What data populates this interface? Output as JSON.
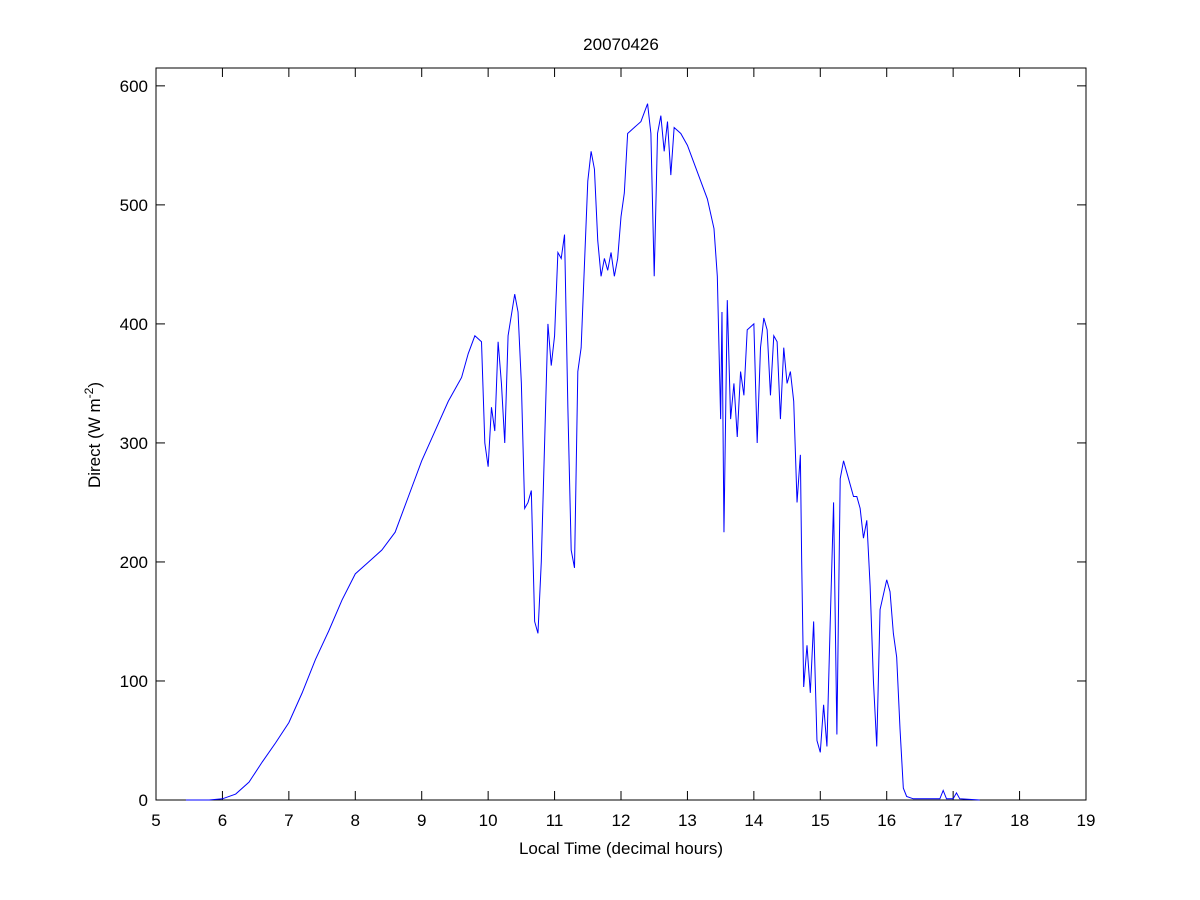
{
  "chart_data": {
    "type": "line",
    "title": "20070426",
    "xlabel": "Local Time (decimal hours)",
    "ylabel": {
      "text": "Direct (W m",
      "sup": "-2",
      "end": ")"
    },
    "xlim": [
      5,
      19
    ],
    "xticks": [
      5,
      6,
      7,
      8,
      9,
      10,
      11,
      12,
      13,
      14,
      15,
      16,
      17,
      18,
      19
    ],
    "ylim": [
      0,
      615
    ],
    "yticks": [
      0,
      100,
      200,
      300,
      400,
      500,
      600
    ],
    "series": [
      {
        "color": "#0000ff",
        "x": [
          5.45,
          5.8,
          6.0,
          6.2,
          6.4,
          6.6,
          6.8,
          7.0,
          7.2,
          7.4,
          7.6,
          7.8,
          8.0,
          8.2,
          8.4,
          8.6,
          8.8,
          9.0,
          9.2,
          9.4,
          9.6,
          9.7,
          9.8,
          9.9,
          9.95,
          10.0,
          10.05,
          10.1,
          10.15,
          10.2,
          10.25,
          10.3,
          10.4,
          10.45,
          10.5,
          10.55,
          10.6,
          10.65,
          10.7,
          10.75,
          10.8,
          10.85,
          10.9,
          10.95,
          11.0,
          11.05,
          11.1,
          11.15,
          11.2,
          11.25,
          11.3,
          11.35,
          11.4,
          11.45,
          11.5,
          11.55,
          11.6,
          11.65,
          11.7,
          11.75,
          11.8,
          11.85,
          11.9,
          11.95,
          12.0,
          12.05,
          12.1,
          12.2,
          12.3,
          12.4,
          12.45,
          12.5,
          12.55,
          12.6,
          12.65,
          12.7,
          12.75,
          12.8,
          12.9,
          13.0,
          13.1,
          13.2,
          13.3,
          13.4,
          13.45,
          13.5,
          13.52,
          13.55,
          13.6,
          13.65,
          13.7,
          13.75,
          13.8,
          13.85,
          13.9,
          14.0,
          14.05,
          14.1,
          14.15,
          14.2,
          14.25,
          14.3,
          14.35,
          14.4,
          14.45,
          14.5,
          14.55,
          14.6,
          14.65,
          14.7,
          14.72,
          14.75,
          14.8,
          14.85,
          14.9,
          14.95,
          15.0,
          15.05,
          15.1,
          15.15,
          15.2,
          15.25,
          15.3,
          15.35,
          15.4,
          15.5,
          15.55,
          15.6,
          15.65,
          15.7,
          15.75,
          15.8,
          15.85,
          15.9,
          16.0,
          16.05,
          16.1,
          16.15,
          16.2,
          16.25,
          16.3,
          16.4,
          16.8,
          16.85,
          16.9,
          17.0,
          17.05,
          17.1,
          17.4
        ],
        "values": [
          0,
          0,
          1,
          5,
          15,
          32,
          48,
          65,
          90,
          118,
          142,
          168,
          190,
          200,
          210,
          225,
          255,
          285,
          310,
          335,
          355,
          375,
          390,
          385,
          300,
          280,
          330,
          310,
          385,
          350,
          300,
          390,
          425,
          410,
          350,
          245,
          250,
          260,
          150,
          140,
          200,
          300,
          400,
          365,
          390,
          460,
          455,
          475,
          330,
          210,
          195,
          360,
          380,
          450,
          520,
          545,
          530,
          470,
          440,
          455,
          445,
          460,
          440,
          455,
          490,
          510,
          560,
          565,
          570,
          585,
          560,
          440,
          560,
          575,
          545,
          570,
          525,
          565,
          560,
          550,
          535,
          520,
          505,
          480,
          440,
          320,
          410,
          225,
          420,
          320,
          350,
          305,
          360,
          340,
          395,
          400,
          300,
          380,
          405,
          395,
          340,
          390,
          385,
          320,
          380,
          350,
          360,
          335,
          250,
          290,
          200,
          95,
          130,
          90,
          150,
          50,
          40,
          80,
          45,
          150,
          250,
          55,
          270,
          285,
          275,
          255,
          255,
          245,
          220,
          235,
          180,
          100,
          45,
          160,
          185,
          175,
          140,
          120,
          60,
          10,
          3,
          1,
          1,
          8,
          1,
          1,
          6,
          1,
          0
        ]
      }
    ]
  }
}
